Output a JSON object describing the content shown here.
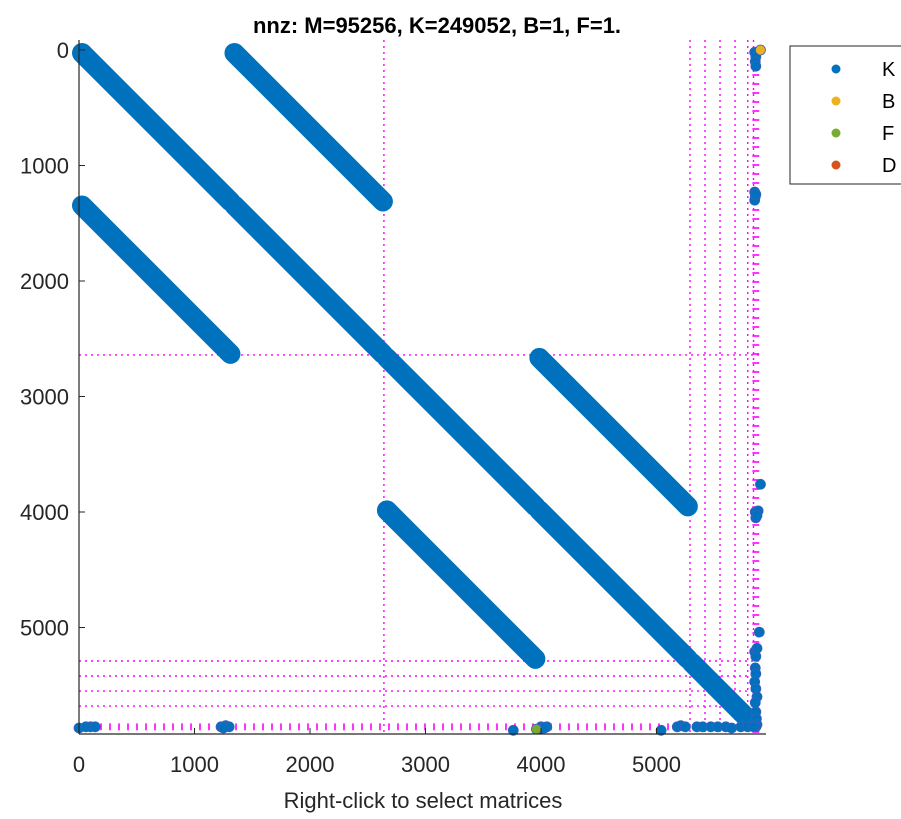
{
  "chart_data": {
    "type": "scatter",
    "title": "nnz: M=95256, K=249052, B=1, F=1.",
    "xlabel": "Right-click to select matrices",
    "ylabel": "",
    "xlim": [
      0,
      5900
    ],
    "ylim": [
      5900,
      -100
    ],
    "y_axis_reversed": true,
    "grid": false,
    "legend_position": "top-right-outside",
    "xticks": [
      "0",
      "1000",
      "2000",
      "3000",
      "4000",
      "5000"
    ],
    "yticks": [
      "0",
      "1000",
      "2000",
      "3000",
      "4000",
      "5000"
    ],
    "xtick_values": [
      0,
      1000,
      2000,
      3000,
      4000,
      5000
    ],
    "ytick_values": [
      0,
      1000,
      2000,
      3000,
      4000,
      5000
    ],
    "partition_lines": {
      "color": "#ff00ff",
      "vertical_x": [
        2640,
        5290,
        5420,
        5550,
        5680,
        5790,
        5840
      ],
      "horizontal_y": [
        2640,
        5290,
        5420,
        5550,
        5680
      ]
    },
    "series": [
      {
        "name": "K",
        "color": "#0072bd",
        "bands": [
          {
            "x0": 0,
            "y0": 0,
            "x1": 1320,
            "y1": 1320
          },
          {
            "x0": 1320,
            "y0": 1320,
            "x1": 2640,
            "y1": 2640
          },
          {
            "x0": 2640,
            "y0": 2640,
            "x1": 3960,
            "y1": 3960
          },
          {
            "x0": 3960,
            "y0": 3960,
            "x1": 5280,
            "y1": 5280
          },
          {
            "x0": 5280,
            "y0": 5280,
            "x1": 5820,
            "y1": 5820
          },
          {
            "x0": 1320,
            "y0": 0,
            "x1": 2640,
            "y1": 1320
          },
          {
            "x0": 0,
            "y0": 1320,
            "x1": 1320,
            "y1": 2640
          },
          {
            "x0": 3960,
            "y0": 2640,
            "x1": 5280,
            "y1": 3960
          },
          {
            "x0": 2640,
            "y0": 3960,
            "x1": 3960,
            "y1": 5280
          }
        ],
        "points": [
          [
            5850,
            20
          ],
          [
            5860,
            60
          ],
          [
            5855,
            100
          ],
          [
            5860,
            140
          ],
          [
            5850,
            1230
          ],
          [
            5855,
            1270
          ],
          [
            5850,
            1300
          ],
          [
            5860,
            1250
          ],
          [
            5900,
            3760
          ],
          [
            5855,
            4000
          ],
          [
            5860,
            4050
          ],
          [
            5880,
            3990
          ],
          [
            5870,
            4030
          ],
          [
            5890,
            5040
          ],
          [
            5850,
            5210
          ],
          [
            5860,
            5250
          ],
          [
            5870,
            5180
          ],
          [
            5855,
            5350
          ],
          [
            5860,
            5400
          ],
          [
            5850,
            5470
          ],
          [
            5860,
            5530
          ],
          [
            5870,
            5600
          ],
          [
            5855,
            5650
          ],
          [
            5860,
            5730
          ],
          [
            5865,
            5790
          ],
          [
            5870,
            5840
          ],
          [
            5860,
            5860
          ],
          [
            0,
            5870
          ],
          [
            60,
            5860
          ],
          [
            100,
            5860
          ],
          [
            140,
            5860
          ],
          [
            1230,
            5860
          ],
          [
            1270,
            5850
          ],
          [
            1300,
            5860
          ],
          [
            1250,
            5870
          ],
          [
            3760,
            5890
          ],
          [
            4000,
            5860
          ],
          [
            4050,
            5860
          ],
          [
            3990,
            5880
          ],
          [
            4030,
            5870
          ],
          [
            5040,
            5890
          ],
          [
            5180,
            5860
          ],
          [
            5210,
            5850
          ],
          [
            5250,
            5860
          ],
          [
            5350,
            5860
          ],
          [
            5400,
            5860
          ],
          [
            5470,
            5860
          ],
          [
            5530,
            5860
          ],
          [
            5600,
            5860
          ],
          [
            5650,
            5870
          ],
          [
            5730,
            5860
          ],
          [
            5790,
            5860
          ],
          [
            5840,
            5860
          ]
        ]
      },
      {
        "name": "B",
        "color": "#edb120",
        "points": [
          [
            5900,
            0
          ]
        ]
      },
      {
        "name": "F",
        "color": "#77ac30",
        "points": [
          [
            3960,
            5880
          ]
        ]
      },
      {
        "name": "D",
        "color": "#d95319",
        "points": []
      }
    ]
  }
}
